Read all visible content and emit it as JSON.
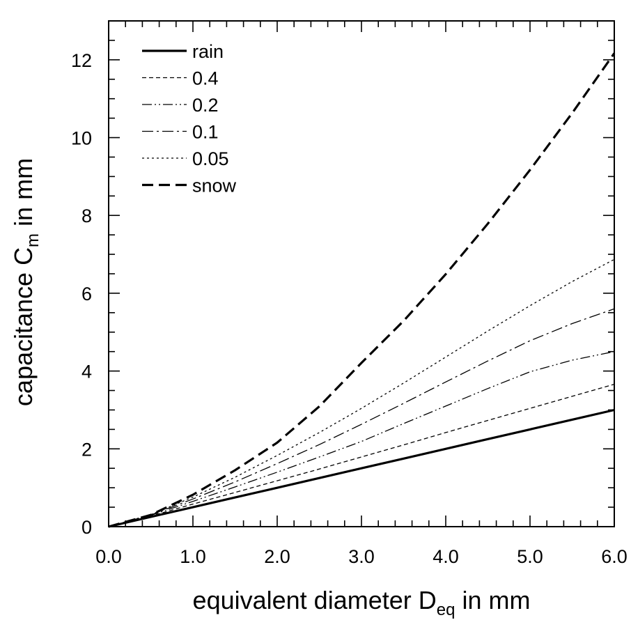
{
  "chart_data": {
    "type": "line",
    "title": "",
    "xlabel": {
      "main": "equivalent diameter D",
      "sub": "eq",
      "suffix": " in mm"
    },
    "ylabel": {
      "main": "capacitance  C",
      "sub": "m",
      "suffix": " in mm"
    },
    "xlim": [
      0,
      6
    ],
    "ylim": [
      0,
      13
    ],
    "xticks": [
      0,
      1,
      2,
      3,
      4,
      5,
      6
    ],
    "xtick_labels": [
      "0.0",
      "1.0",
      "2.0",
      "3.0",
      "4.0",
      "5.0",
      "6.0"
    ],
    "yticks": [
      0,
      2,
      4,
      6,
      8,
      10,
      12
    ],
    "ytick_labels": [
      "0",
      "2",
      "4",
      "6",
      "8",
      "10",
      "12"
    ],
    "grid": false,
    "legend": "top-left",
    "x": [
      0.0,
      0.5,
      1.0,
      1.5,
      2.0,
      2.5,
      3.0,
      3.5,
      4.0,
      4.5,
      5.0,
      5.5,
      6.0
    ],
    "series": [
      {
        "name": "rain",
        "dash": "solid",
        "width": 3.2,
        "values": [
          0.0,
          0.25,
          0.5,
          0.75,
          1.0,
          1.25,
          1.5,
          1.75,
          2.0,
          2.25,
          2.5,
          2.75,
          3.0
        ]
      },
      {
        "name": "0.4",
        "dash": "dash",
        "width": 1.3,
        "values": [
          0.0,
          0.27,
          0.58,
          0.88,
          1.18,
          1.48,
          1.79,
          2.1,
          2.42,
          2.73,
          3.04,
          3.35,
          3.66
        ]
      },
      {
        "name": "0.2",
        "dash": "dashdotdot",
        "width": 1.3,
        "values": [
          0.0,
          0.29,
          0.65,
          1.02,
          1.4,
          1.79,
          2.19,
          2.65,
          3.1,
          3.55,
          3.98,
          4.28,
          4.5
        ]
      },
      {
        "name": "0.1",
        "dash": "dashdot",
        "width": 1.3,
        "values": [
          0.0,
          0.3,
          0.71,
          1.15,
          1.62,
          2.11,
          2.63,
          3.17,
          3.72,
          4.26,
          4.78,
          5.22,
          5.6
        ]
      },
      {
        "name": "0.05",
        "dash": "dot",
        "width": 1.3,
        "values": [
          0.0,
          0.31,
          0.76,
          1.27,
          1.83,
          2.42,
          3.04,
          3.69,
          4.36,
          5.03,
          5.68,
          6.3,
          6.87
        ]
      },
      {
        "name": "snow",
        "dash": "longdash",
        "width": 3.2,
        "values": [
          0.0,
          0.3,
          0.82,
          1.45,
          2.16,
          3.09,
          4.21,
          5.29,
          6.49,
          7.79,
          9.17,
          10.63,
          12.17
        ]
      }
    ]
  }
}
